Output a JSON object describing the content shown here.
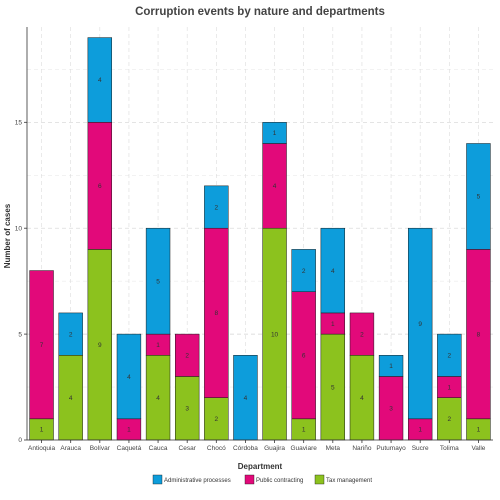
{
  "chart_data": {
    "type": "bar",
    "stacked": true,
    "title": "Corruption events by nature and departments",
    "xlabel": "Department",
    "ylabel": "Number of cases",
    "ylim": [
      0,
      19.5
    ],
    "yticks": [
      0,
      5,
      10,
      15
    ],
    "grid": true,
    "legend_position": "bottom",
    "categories": [
      "Antioquia",
      "Arauca",
      "Bolívar",
      "Caquetá",
      "Cauca",
      "Cesar",
      "Chocó",
      "Córdoba",
      "Guajira",
      "Guaviare",
      "Meta",
      "Nariño",
      "Putumayo",
      "Sucre",
      "Tolima",
      "Valle"
    ],
    "series": [
      {
        "name": "Tax management",
        "color": "#8cc21e",
        "values": [
          1,
          4,
          9,
          0,
          4,
          3,
          2,
          0,
          10,
          1,
          5,
          4,
          0,
          0,
          2,
          1
        ]
      },
      {
        "name": "Public contracting",
        "color": "#e2097a",
        "values": [
          7,
          0,
          6,
          1,
          1,
          2,
          8,
          0,
          4,
          6,
          1,
          2,
          3,
          1,
          1,
          8
        ]
      },
      {
        "name": "Administrative processes",
        "color": "#0d9ddb",
        "values": [
          0,
          2,
          4,
          4,
          5,
          0,
          2,
          4,
          1,
          2,
          4,
          0,
          1,
          9,
          2,
          5
        ]
      }
    ],
    "legend_order": [
      "Administrative processes",
      "Public contracting",
      "Tax management"
    ]
  }
}
